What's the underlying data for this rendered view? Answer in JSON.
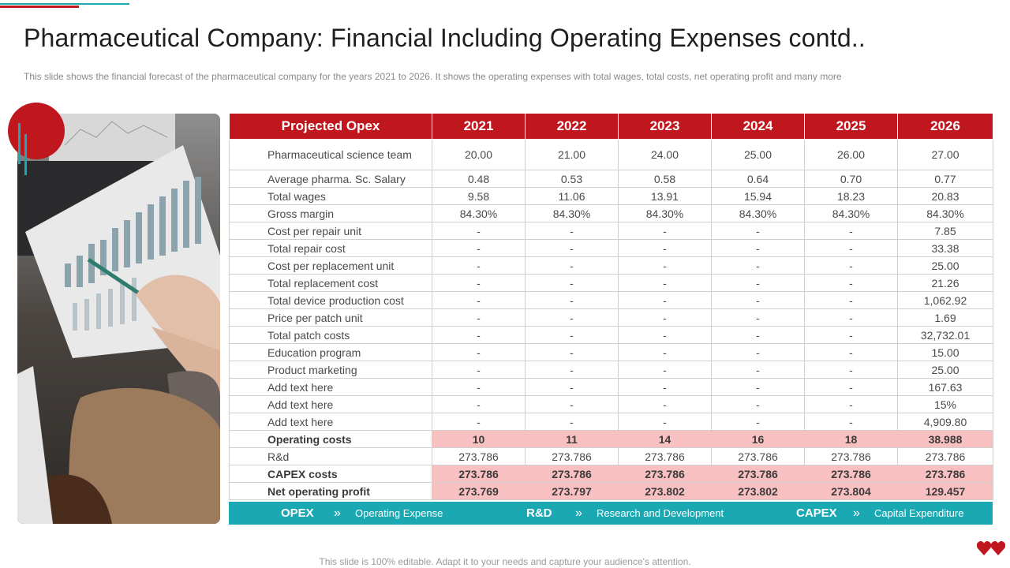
{
  "title": "Pharmaceutical Company: Financial Including Operating Expenses contd..",
  "subtitle": "This slide shows the financial forecast of the pharmaceutical company for the years 2021 to 2026. It shows the operating expenses with total wages, total costs, net operating profit and many more",
  "table": {
    "headers": [
      "Projected Opex",
      "2021",
      "2022",
      "2023",
      "2024",
      "2025",
      "2026"
    ],
    "rows": [
      {
        "label": "Pharmaceutical science team",
        "values": [
          "20.00",
          "21.00",
          "24.00",
          "25.00",
          "26.00",
          "27.00"
        ]
      },
      {
        "label": "Average pharma. Sc. Salary",
        "values": [
          "0.48",
          "0.53",
          "0.58",
          "0.64",
          "0.70",
          "0.77"
        ]
      },
      {
        "label": "Total wages",
        "values": [
          "9.58",
          "11.06",
          "13.91",
          "15.94",
          "18.23",
          "20.83"
        ]
      },
      {
        "label": "Gross margin",
        "values": [
          "84.30%",
          "84.30%",
          "84.30%",
          "84.30%",
          "84.30%",
          "84.30%"
        ]
      },
      {
        "label": "Cost per repair unit",
        "values": [
          "-",
          "-",
          "-",
          "-",
          "-",
          "7.85"
        ]
      },
      {
        "label": "Total repair cost",
        "values": [
          "-",
          "-",
          "-",
          "-",
          "-",
          "33.38"
        ]
      },
      {
        "label": "Cost per replacement unit",
        "values": [
          "-",
          "-",
          "-",
          "-",
          "-",
          "25.00"
        ]
      },
      {
        "label": "Total replacement cost",
        "values": [
          "-",
          "-",
          "-",
          "-",
          "-",
          "21.26"
        ]
      },
      {
        "label": "Total device production cost",
        "values": [
          "-",
          "-",
          "-",
          "-",
          "-",
          "1,062.92"
        ]
      },
      {
        "label": "Price per patch unit",
        "values": [
          "-",
          "-",
          "-",
          "-",
          "-",
          "1.69"
        ]
      },
      {
        "label": "Total patch costs",
        "values": [
          "-",
          "-",
          "-",
          "-",
          "-",
          "32,732.01"
        ]
      },
      {
        "label": "Education program",
        "values": [
          "-",
          "-",
          "-",
          "-",
          "-",
          "15.00"
        ]
      },
      {
        "label": "Product marketing",
        "values": [
          "-",
          "-",
          "-",
          "-",
          "-",
          "25.00"
        ]
      },
      {
        "label": "Add text here",
        "values": [
          "-",
          "-",
          "-",
          "-",
          "-",
          "167.63"
        ]
      },
      {
        "label": "Add text here",
        "values": [
          "-",
          "-",
          "-",
          "-",
          "-",
          "15%"
        ]
      },
      {
        "label": "Add text here",
        "values": [
          "-",
          "-",
          "-",
          "-",
          "-",
          "4,909.80"
        ]
      },
      {
        "label": "Operating costs",
        "values": [
          "10",
          "11",
          "14",
          "16",
          "18",
          "38.988"
        ],
        "style": "hl"
      },
      {
        "label": "R&d",
        "values": [
          "273.786",
          "273.786",
          "273.786",
          "273.786",
          "273.786",
          "273.786"
        ]
      },
      {
        "label": "CAPEX costs",
        "values": [
          "273.786",
          "273.786",
          "273.786",
          "273.786",
          "273.786",
          "273.786"
        ],
        "style": "hl"
      },
      {
        "label": "Net operating profit",
        "values": [
          "273.769",
          "273.797",
          "273.802",
          "273.802",
          "273.804",
          "129.457"
        ],
        "style": "hl"
      }
    ]
  },
  "legend": [
    {
      "abbr": "OPEX",
      "desc": "Operating Expense"
    },
    {
      "abbr": "R&D",
      "desc": "Research and Development"
    },
    {
      "abbr": "CAPEX",
      "desc": "Capital Expenditure"
    }
  ],
  "legend_arrow": "»",
  "footer": "This slide is 100% editable. Adapt it to your needs and capture your audience's attention.",
  "colors": {
    "accent_red": "#c0161d",
    "accent_teal": "#1aa9b3",
    "highlight_pink": "#f9c0c2"
  }
}
